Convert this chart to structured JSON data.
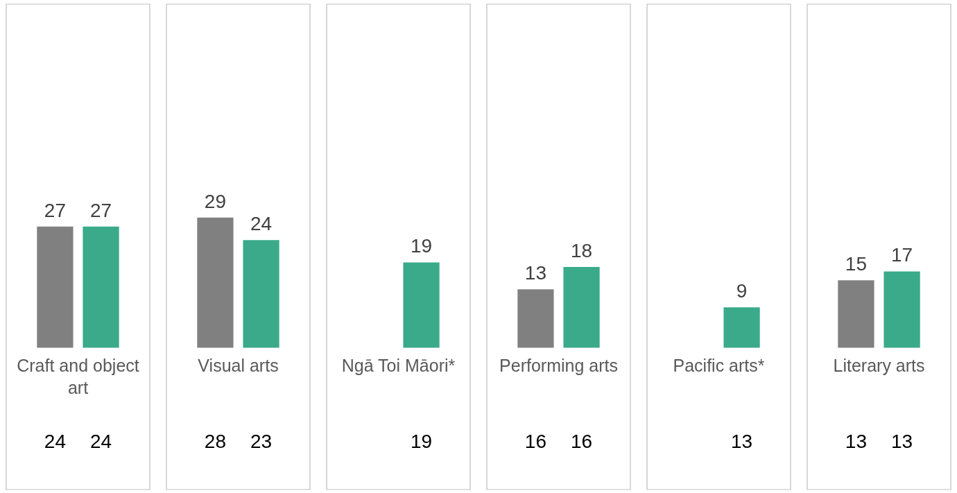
{
  "chart_data": {
    "type": "bar",
    "categories": [
      "Craft and object art",
      "Visual arts",
      "Ngā Toi Māori*",
      "Performing arts",
      "Pacific arts*",
      "Literary arts"
    ],
    "series": [
      {
        "color": "#808080",
        "values": [
          27,
          29,
          null,
          13,
          null,
          15
        ]
      },
      {
        "color": "#3aaa8a",
        "values": [
          27,
          24,
          19,
          18,
          9,
          17
        ]
      }
    ],
    "data_labels": true,
    "annotations": [
      "24",
      "24",
      "28",
      "23",
      "19",
      "16",
      "16",
      "13",
      "13",
      "13"
    ]
  }
}
